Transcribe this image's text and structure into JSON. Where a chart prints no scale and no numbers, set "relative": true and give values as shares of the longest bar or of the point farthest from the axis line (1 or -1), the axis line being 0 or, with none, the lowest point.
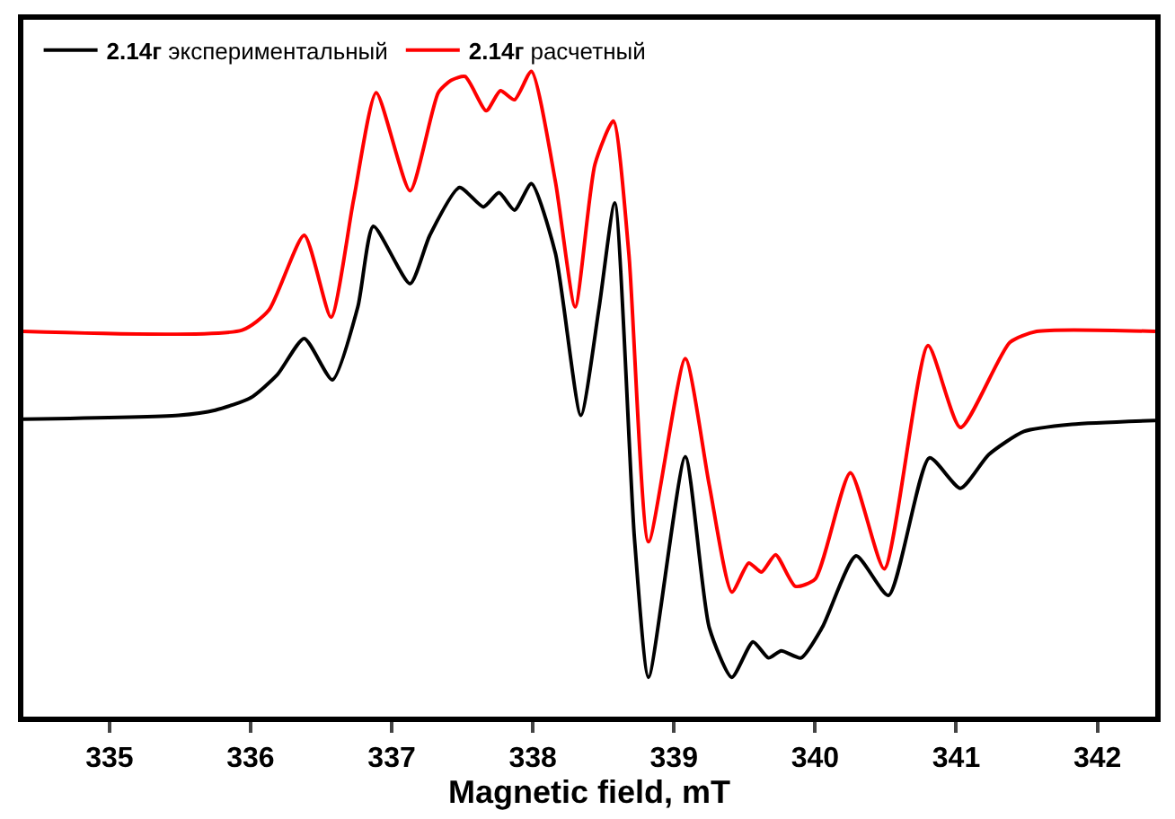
{
  "chart_data": {
    "type": "line",
    "xlabel": "Magnetic field, mT",
    "relative": true,
    "xlim": [
      334.39,
      342.41
    ],
    "xticks": [
      335,
      336,
      337,
      338,
      339,
      340,
      341,
      342
    ],
    "legend": "top left",
    "marker": "none",
    "line_style": "solid",
    "series": [
      {
        "name": "2.14г экспериментальный",
        "color": "#000000",
        "x": [
          334.39,
          335.49,
          335.75,
          336.0,
          336.19,
          336.38,
          336.58,
          336.76,
          336.87,
          337.13,
          337.27,
          337.48,
          337.65,
          337.76,
          337.87,
          337.99,
          338.16,
          338.34,
          338.47,
          338.58,
          338.72,
          338.82,
          339.08,
          339.25,
          339.41,
          339.56,
          339.67,
          339.76,
          339.9,
          340.05,
          340.29,
          340.52,
          340.81,
          341.03,
          341.23,
          341.48,
          341.82,
          342.41
        ],
        "values": [
          0.461,
          0.467,
          0.475,
          0.494,
          0.53,
          0.586,
          0.522,
          0.635,
          0.76,
          0.671,
          0.746,
          0.82,
          0.79,
          0.812,
          0.785,
          0.826,
          0.718,
          0.467,
          0.635,
          0.796,
          0.276,
          0.061,
          0.403,
          0.138,
          0.061,
          0.116,
          0.091,
          0.102,
          0.091,
          0.138,
          0.249,
          0.188,
          0.401,
          0.354,
          0.406,
          0.442,
          0.453,
          0.459
        ]
      },
      {
        "name": "2.14г расчетный",
        "color": "#ff0000",
        "x": [
          334.39,
          335.94,
          336.13,
          336.38,
          336.57,
          336.73,
          336.89,
          337.13,
          337.33,
          337.42,
          337.52,
          337.67,
          337.77,
          337.87,
          337.99,
          338.16,
          338.3,
          338.44,
          338.57,
          338.68,
          338.82,
          339.08,
          339.25,
          339.41,
          339.53,
          339.62,
          339.72,
          339.86,
          340.0,
          340.25,
          340.49,
          340.8,
          341.03,
          341.38,
          341.57,
          342.41
        ],
        "values": [
          0.597,
          0.599,
          0.63,
          0.746,
          0.619,
          0.801,
          0.967,
          0.815,
          0.967,
          0.986,
          0.992,
          0.939,
          0.97,
          0.956,
          1.0,
          0.829,
          0.635,
          0.856,
          0.923,
          0.718,
          0.271,
          0.555,
          0.359,
          0.193,
          0.238,
          0.224,
          0.251,
          0.202,
          0.213,
          0.378,
          0.229,
          0.575,
          0.448,
          0.58,
          0.597,
          0.597
        ]
      }
    ]
  }
}
